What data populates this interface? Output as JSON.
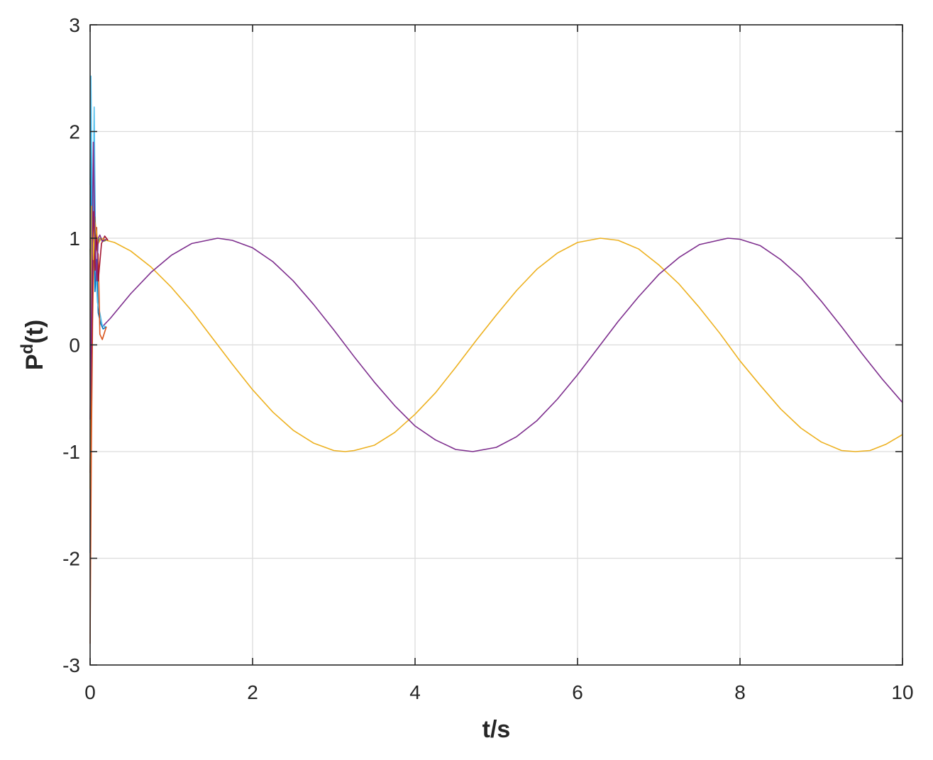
{
  "chart_data": {
    "type": "line",
    "xlabel": "t/s",
    "ylabel": {
      "base": "P",
      "sup": "d",
      "rest": "(t)"
    },
    "xlim": [
      0,
      10
    ],
    "ylim": [
      -3,
      3
    ],
    "xticks": [
      0,
      2,
      4,
      6,
      8,
      10
    ],
    "yticks": [
      3,
      2,
      1,
      0,
      -1,
      -2,
      -3
    ],
    "grid": true,
    "series": [
      {
        "color": "#EDB120",
        "x": [
          0.2,
          0.3,
          0.5,
          0.75,
          1.0,
          1.25,
          1.5,
          1.75,
          2.0,
          2.25,
          2.5,
          2.75,
          3.0,
          3.14,
          3.25,
          3.5,
          3.75,
          4.0,
          4.25,
          4.5,
          4.75,
          5.0,
          5.25,
          5.5,
          5.75,
          6.0,
          6.28,
          6.5,
          6.75,
          7.0,
          7.25,
          7.5,
          7.75,
          8.0,
          8.25,
          8.5,
          8.75,
          9.0,
          9.25,
          9.42,
          9.6,
          9.8,
          10.0
        ],
        "y": [
          0.98,
          0.96,
          0.88,
          0.73,
          0.54,
          0.32,
          0.07,
          -0.18,
          -0.42,
          -0.63,
          -0.8,
          -0.92,
          -0.99,
          -1.0,
          -0.99,
          -0.94,
          -0.82,
          -0.65,
          -0.45,
          -0.21,
          0.04,
          0.28,
          0.51,
          0.71,
          0.86,
          0.96,
          1.0,
          0.98,
          0.9,
          0.75,
          0.57,
          0.35,
          0.11,
          -0.15,
          -0.38,
          -0.6,
          -0.78,
          -0.91,
          -0.99,
          -1.0,
          -0.99,
          -0.93,
          -0.84
        ]
      },
      {
        "color": "#7E2F8E",
        "x": [
          0.15,
          0.25,
          0.5,
          0.75,
          1.0,
          1.25,
          1.57,
          1.75,
          2.0,
          2.25,
          2.5,
          2.75,
          3.0,
          3.25,
          3.5,
          3.75,
          4.0,
          4.25,
          4.5,
          4.71,
          5.0,
          5.25,
          5.5,
          5.75,
          6.0,
          6.25,
          6.5,
          6.75,
          7.0,
          7.25,
          7.5,
          7.85,
          8.0,
          8.25,
          8.5,
          8.75,
          9.0,
          9.25,
          9.5,
          9.75,
          10.0
        ],
        "y": [
          0.17,
          0.25,
          0.48,
          0.68,
          0.84,
          0.95,
          1.0,
          0.98,
          0.91,
          0.78,
          0.6,
          0.38,
          0.14,
          -0.11,
          -0.35,
          -0.57,
          -0.76,
          -0.89,
          -0.98,
          -1.0,
          -0.96,
          -0.86,
          -0.71,
          -0.51,
          -0.28,
          -0.03,
          0.22,
          0.45,
          0.66,
          0.82,
          0.94,
          1.0,
          0.99,
          0.93,
          0.8,
          0.63,
          0.41,
          0.17,
          -0.08,
          -0.32,
          -0.54
        ]
      },
      {
        "color": "#0072BD",
        "x": [
          0.0,
          0.01,
          0.02,
          0.04,
          0.06,
          0.08,
          0.1,
          0.13,
          0.16,
          0.2
        ],
        "y": [
          -1.95,
          2.5,
          0.2,
          1.7,
          0.5,
          0.8,
          0.3,
          0.2,
          0.15,
          0.17
        ]
      },
      {
        "color": "#4DBEEE",
        "x": [
          0.0,
          0.01,
          0.03,
          0.05,
          0.07,
          0.09,
          0.12,
          0.15,
          0.2
        ],
        "y": [
          1.5,
          2.52,
          0.7,
          2.23,
          0.7,
          0.4,
          0.3,
          0.18,
          0.17
        ]
      },
      {
        "color": "#D95319",
        "x": [
          0.0,
          0.015,
          0.03,
          0.05,
          0.08,
          0.1,
          0.12,
          0.15,
          0.2
        ],
        "y": [
          -2.8,
          -1.0,
          0.2,
          1.1,
          0.9,
          0.85,
          0.1,
          0.05,
          0.17
        ]
      },
      {
        "color": "#77AC30",
        "x": [
          0.0,
          0.02,
          0.04,
          0.06,
          0.08,
          0.12,
          0.16,
          0.2
        ],
        "y": [
          0.9,
          0.3,
          1.0,
          1.2,
          0.9,
          1.0,
          0.97,
          0.98
        ]
      },
      {
        "color": "#A2142F",
        "x": [
          0.0,
          0.02,
          0.04,
          0.06,
          0.08,
          0.1,
          0.14,
          0.18,
          0.22
        ],
        "y": [
          -1.2,
          0.0,
          1.25,
          0.7,
          1.1,
          0.6,
          0.95,
          1.02,
          0.98
        ]
      },
      {
        "color": "#EDB120",
        "x": [
          0.0,
          0.02,
          0.04,
          0.06,
          0.1,
          0.14,
          0.2
        ],
        "y": [
          -1.35,
          1.3,
          0.8,
          1.15,
          0.95,
          1.0,
          0.98
        ]
      },
      {
        "color": "#7E2F8E",
        "x": [
          0.0,
          0.02,
          0.04,
          0.06,
          0.08,
          0.1,
          0.12,
          0.15,
          0.2
        ],
        "y": [
          -0.7,
          0.5,
          1.9,
          1.0,
          0.6,
          1.0,
          1.03,
          0.97,
          0.99
        ]
      }
    ]
  }
}
